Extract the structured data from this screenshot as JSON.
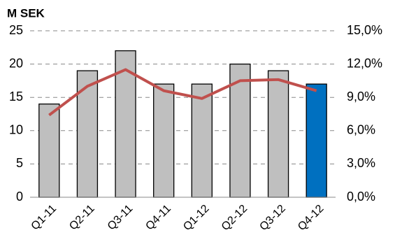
{
  "chart_data": {
    "type": "bar-line",
    "ylabel": "M SEK",
    "categories": [
      "Q1-11",
      "Q2-11",
      "Q3-11",
      "Q4-11",
      "Q1-12",
      "Q2-12",
      "Q3-12",
      "Q4-12"
    ],
    "series": [
      {
        "type": "bar",
        "colors": [
          "#bfbfbf",
          "#bfbfbf",
          "#bfbfbf",
          "#bfbfbf",
          "#bfbfbf",
          "#bfbfbf",
          "#bfbfbf",
          "#0070c0"
        ],
        "values": [
          14,
          19,
          22,
          17,
          17,
          20,
          19,
          17
        ]
      },
      {
        "type": "line",
        "axis": "y2",
        "color": "#c0504d",
        "values": [
          7.4,
          10.0,
          11.5,
          9.6,
          8.9,
          10.5,
          10.6,
          9.6
        ]
      }
    ],
    "ylim": [
      0,
      25
    ],
    "yticks": [
      0,
      5,
      10,
      15,
      20,
      25
    ],
    "y2lim": [
      0,
      15
    ],
    "y2ticks": [
      {
        "value": 0,
        "label": "0,0%"
      },
      {
        "value": 3,
        "label": "3,0%"
      },
      {
        "value": 6,
        "label": "6,0%"
      },
      {
        "value": 9,
        "label": "9,0%"
      },
      {
        "value": 12,
        "label": "12,0%"
      },
      {
        "value": 15,
        "label": "15,0%"
      }
    ],
    "grid": true
  }
}
